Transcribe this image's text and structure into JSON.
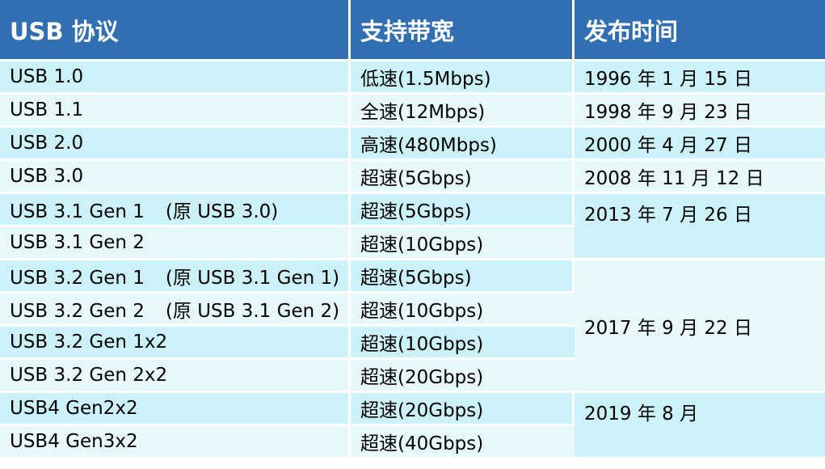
{
  "table": {
    "headers": [
      "USB 协议",
      "支持带宽",
      "发布时间"
    ],
    "rows": [
      {
        "protocol": "USB 1.0",
        "bandwidth": "低速(1.5Mbps)",
        "date": "1996 年 1 月 15 日"
      },
      {
        "protocol": "USB 1.1",
        "bandwidth": "全速(12Mbps)",
        "date": "1998 年 9 月 23 日"
      },
      {
        "protocol": "USB 2.0",
        "bandwidth": "高速(480Mbps)",
        "date": "2000 年 4 月 27 日"
      },
      {
        "protocol": "USB 3.0",
        "bandwidth": "超速(5Gbps)",
        "date": "2008 年 11 月 12 日"
      },
      {
        "protocol": "USB 3.1 Gen 1",
        "note": "(原 USB 3.0)",
        "bandwidth": "超速(5Gbps)",
        "date": "2013 年 7 月 26 日"
      },
      {
        "protocol": "USB 3.1 Gen 2",
        "bandwidth": "超速(10Gbps)"
      },
      {
        "protocol": "USB 3.2 Gen 1",
        "note": "(原 USB 3.1 Gen 1)",
        "bandwidth": "超速(5Gbps)",
        "date": "2017 年 9 月 22 日"
      },
      {
        "protocol": "USB 3.2 Gen 2",
        "note": "(原 USB 3.1 Gen 2)",
        "bandwidth": "超速(10Gbps)"
      },
      {
        "protocol": "USB 3.2 Gen 1x2",
        "bandwidth": "超速(10Gbps)"
      },
      {
        "protocol": "USB 3.2 Gen 2x2",
        "bandwidth": "超速(20Gbps)"
      },
      {
        "protocol": "USB4 Gen2x2",
        "bandwidth": "超速(20Gbps)",
        "date": "2019 年 8 月"
      },
      {
        "protocol": "USB4 Gen3x2",
        "bandwidth": "超速(40Gbps)"
      }
    ]
  }
}
